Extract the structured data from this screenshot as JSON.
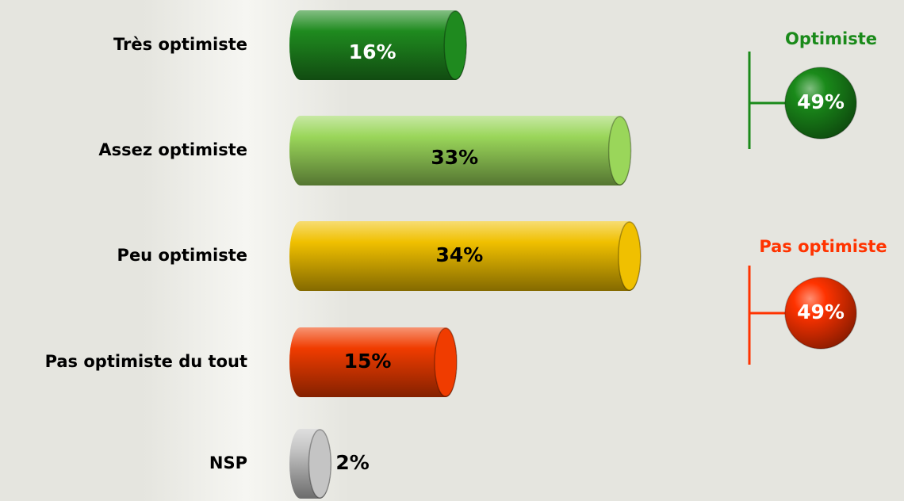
{
  "chart_data": {
    "type": "bar",
    "orientation": "horizontal",
    "categories": [
      "Très optimiste",
      "Assez optimiste",
      "Peu optimiste",
      "Pas optimiste du tout",
      "NSP"
    ],
    "values": [
      16,
      33,
      34,
      15,
      2
    ],
    "value_labels": [
      "16%",
      "33%",
      "34%",
      "15%",
      "2%"
    ],
    "colors": [
      "#1f8a1f",
      "#9ad65a",
      "#f0c000",
      "#f03c00",
      "#c4c4c4"
    ],
    "label_colors": [
      "#ffffff",
      "#000000",
      "#000000",
      "#000000",
      "#000000"
    ],
    "groups": [
      {
        "name": "Optimiste",
        "color": "#1a8a1a",
        "value": 49,
        "value_label": "49%"
      },
      {
        "name": "Pas optimiste",
        "color": "#ff3300",
        "value": 49,
        "value_label": "49%"
      }
    ]
  }
}
